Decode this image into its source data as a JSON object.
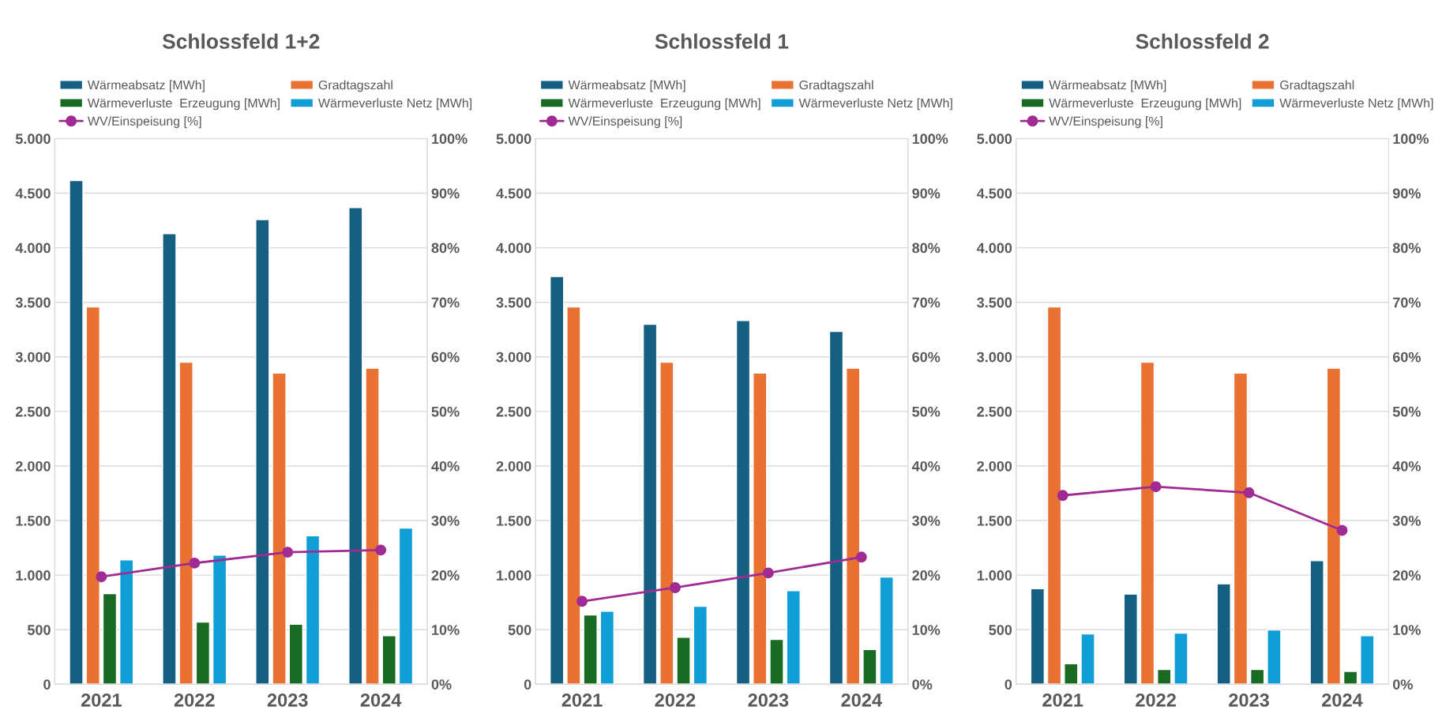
{
  "chart_data": [
    {
      "type": "bar",
      "title": "Schlossfeld 1+2",
      "categories": [
        "2021",
        "2022",
        "2023",
        "2024"
      ],
      "legend": "top",
      "grid": "y",
      "ylim": [
        0,
        5000
      ],
      "yticks": [
        0,
        500,
        {
          "value": 1000,
          "label": "1.000"
        },
        {
          "value": 1500,
          "label": "1.500"
        },
        {
          "value": 2000,
          "label": "2.000"
        },
        {
          "value": 2500,
          "label": "2.500"
        },
        {
          "value": 3000,
          "label": "3.000"
        },
        {
          "value": 3500,
          "label": "3.500"
        },
        {
          "value": 4000,
          "label": "4.000"
        },
        {
          "value": 4500,
          "label": "4.500"
        },
        {
          "value": 5000,
          "label": "5.000"
        }
      ],
      "y2lim": [
        0,
        100
      ],
      "y2ticks": [
        {
          "value": 0,
          "label": "0%"
        },
        {
          "value": 10,
          "label": "10%"
        },
        {
          "value": 20,
          "label": "20%"
        },
        {
          "value": 30,
          "label": "30%"
        },
        {
          "value": 40,
          "label": "40%"
        },
        {
          "value": 50,
          "label": "50%"
        },
        {
          "value": 60,
          "label": "60%"
        },
        {
          "value": 70,
          "label": "70%"
        },
        {
          "value": 80,
          "label": "80%"
        },
        {
          "value": 90,
          "label": "90%"
        },
        {
          "value": 100,
          "label": "100%"
        }
      ],
      "series": [
        {
          "name": "Wärmeabsatz [MWh]",
          "color": "#156082",
          "values": [
            4615,
            4128,
            4257,
            4368
          ]
        },
        {
          "name": "Gradtagszahl",
          "color": "#e97132",
          "values": [
            3458,
            2951,
            2851,
            2896
          ]
        },
        {
          "name": "Wärmeverluste  Erzeugung [MWh]",
          "color": "#196b24",
          "values": [
            830,
            569,
            549,
            444
          ]
        },
        {
          "name": "Wärmeverluste Netz [MWh]",
          "color": "#0f9ed5",
          "values": [
            1139,
            1184,
            1361,
            1431
          ]
        },
        {
          "name": "WV/Einspeisung [%]",
          "color": "#a02b93",
          "type": "line",
          "axis": "y2",
          "marker": "circle",
          "values": [
            19.7,
            22.2,
            24.2,
            24.6
          ]
        }
      ]
    },
    {
      "type": "bar",
      "title": "Schlossfeld 1",
      "categories": [
        "2021",
        "2022",
        "2023",
        "2024"
      ],
      "legend": "top",
      "grid": "y",
      "ylim": [
        0,
        5000
      ],
      "yticks": [
        0,
        500,
        {
          "value": 1000,
          "label": "1.000"
        },
        {
          "value": 1500,
          "label": "1.500"
        },
        {
          "value": 2000,
          "label": "2.000"
        },
        {
          "value": 2500,
          "label": "2.500"
        },
        {
          "value": 3000,
          "label": "3.000"
        },
        {
          "value": 3500,
          "label": "3.500"
        },
        {
          "value": 4000,
          "label": "4.000"
        },
        {
          "value": 4500,
          "label": "4.500"
        },
        {
          "value": 5000,
          "label": "5.000"
        }
      ],
      "y2lim": [
        0,
        100
      ],
      "y2ticks": [
        {
          "value": 0,
          "label": "0%"
        },
        {
          "value": 10,
          "label": "10%"
        },
        {
          "value": 20,
          "label": "20%"
        },
        {
          "value": 30,
          "label": "30%"
        },
        {
          "value": 40,
          "label": "40%"
        },
        {
          "value": 50,
          "label": "50%"
        },
        {
          "value": 60,
          "label": "60%"
        },
        {
          "value": 70,
          "label": "70%"
        },
        {
          "value": 80,
          "label": "80%"
        },
        {
          "value": 90,
          "label": "90%"
        },
        {
          "value": 100,
          "label": "100%"
        }
      ],
      "series": [
        {
          "name": "Wärmeabsatz [MWh]",
          "color": "#156082",
          "values": [
            3736,
            3299,
            3333,
            3233
          ]
        },
        {
          "name": "Gradtagszahl",
          "color": "#e97132",
          "values": [
            3458,
            2951,
            2851,
            2896
          ]
        },
        {
          "name": "Wärmeverluste  Erzeugung [MWh]",
          "color": "#196b24",
          "values": [
            635,
            431,
            410,
            319
          ]
        },
        {
          "name": "Wärmeverluste Netz [MWh]",
          "color": "#0f9ed5",
          "values": [
            670,
            715,
            858,
            983
          ]
        },
        {
          "name": "WV/Einspeisung [%]",
          "color": "#a02b93",
          "type": "line",
          "axis": "y2",
          "marker": "circle",
          "values": [
            15.2,
            17.7,
            20.4,
            23.3
          ]
        }
      ]
    },
    {
      "type": "bar",
      "title": "Schlossfeld 2",
      "categories": [
        "2021",
        "2022",
        "2023",
        "2024"
      ],
      "legend": "top",
      "grid": "y",
      "ylim": [
        0,
        5000
      ],
      "yticks": [
        0,
        500,
        {
          "value": 1000,
          "label": "1.000"
        },
        {
          "value": 1500,
          "label": "1.500"
        },
        {
          "value": 2000,
          "label": "2.000"
        },
        {
          "value": 2500,
          "label": "2.500"
        },
        {
          "value": 3000,
          "label": "3.000"
        },
        {
          "value": 3500,
          "label": "3.500"
        },
        {
          "value": 4000,
          "label": "4.000"
        },
        {
          "value": 4500,
          "label": "4.500"
        },
        {
          "value": 5000,
          "label": "5.000"
        }
      ],
      "y2lim": [
        0,
        100
      ],
      "y2ticks": [
        {
          "value": 0,
          "label": "0%"
        },
        {
          "value": 10,
          "label": "10%"
        },
        {
          "value": 20,
          "label": "20%"
        },
        {
          "value": 30,
          "label": "30%"
        },
        {
          "value": 40,
          "label": "40%"
        },
        {
          "value": 50,
          "label": "50%"
        },
        {
          "value": 60,
          "label": "60%"
        },
        {
          "value": 70,
          "label": "70%"
        },
        {
          "value": 80,
          "label": "80%"
        },
        {
          "value": 90,
          "label": "90%"
        },
        {
          "value": 100,
          "label": "100%"
        }
      ],
      "series": [
        {
          "name": "Wärmeabsatz [MWh]",
          "color": "#156082",
          "values": [
            875,
            826,
            920,
            1132
          ]
        },
        {
          "name": "Gradtagszahl",
          "color": "#e97132",
          "values": [
            3458,
            2951,
            2851,
            2896
          ]
        },
        {
          "name": "Wärmeverluste  Erzeugung [MWh]",
          "color": "#196b24",
          "values": [
            188,
            135,
            135,
            118
          ]
        },
        {
          "name": "Wärmeverluste Netz [MWh]",
          "color": "#0f9ed5",
          "values": [
            462,
            469,
            497,
            444
          ]
        },
        {
          "name": "WV/Einspeisung [%]",
          "color": "#a02b93",
          "type": "line",
          "axis": "y2",
          "marker": "circle",
          "values": [
            34.6,
            36.2,
            35.1,
            28.2
          ]
        }
      ]
    }
  ]
}
